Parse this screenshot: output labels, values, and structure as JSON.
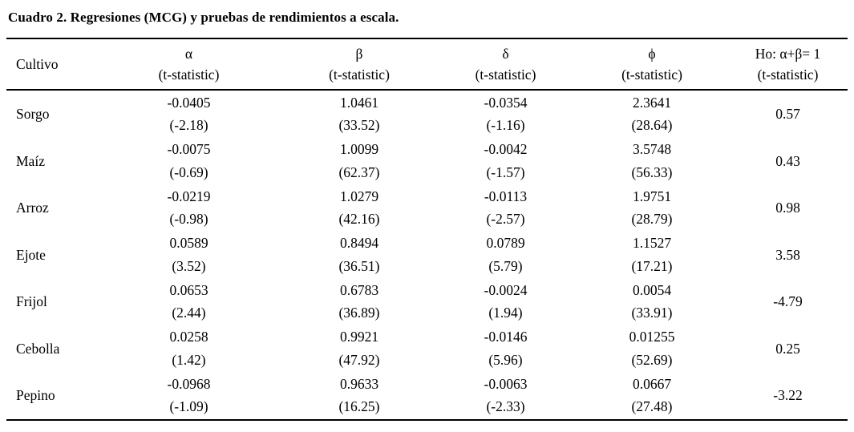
{
  "title": "Cuadro 2. Regresiones (MCG) y pruebas de rendimientos a escala.",
  "table": {
    "columns": [
      {
        "label": "Cultivo",
        "sublabel": ""
      },
      {
        "label": "α",
        "sublabel": "(t-statistic)"
      },
      {
        "label": "β",
        "sublabel": "(t-statistic)"
      },
      {
        "label": "δ",
        "sublabel": "(t-statistic)"
      },
      {
        "label": "ϕ",
        "sublabel": "(t-statistic)"
      },
      {
        "label": "Ho: α+β= 1",
        "sublabel": "(t-statistic)"
      }
    ],
    "rows": [
      {
        "name": "Sorgo",
        "values": [
          "-0.0405",
          "1.0461",
          "-0.0354",
          "2.3641"
        ],
        "tstats": [
          "(-2.18)",
          "(33.52)",
          "(-1.16)",
          "(28.64)"
        ],
        "ho": "0.57"
      },
      {
        "name": "Maíz",
        "values": [
          "-0.0075",
          "1.0099",
          "-0.0042",
          "3.5748"
        ],
        "tstats": [
          "(-0.69)",
          "(62.37)",
          "(-1.57)",
          "(56.33)"
        ],
        "ho": "0.43"
      },
      {
        "name": "Arroz",
        "values": [
          "-0.0219",
          "1.0279",
          "-0.0113",
          "1.9751"
        ],
        "tstats": [
          "(-0.98)",
          "(42.16)",
          "(-2.57)",
          "(28.79)"
        ],
        "ho": "0.98"
      },
      {
        "name": "Ejote",
        "values": [
          "0.0589",
          "0.8494",
          "0.0789",
          "1.1527"
        ],
        "tstats": [
          "(3.52)",
          "(36.51)",
          "(5.79)",
          "(17.21)"
        ],
        "ho": "3.58"
      },
      {
        "name": "Frijol",
        "values": [
          "0.0653",
          "0.6783",
          "-0.0024",
          "0.0054"
        ],
        "tstats": [
          "(2.44)",
          "(36.89)",
          "(1.94)",
          "(33.91)"
        ],
        "ho": "-4.79"
      },
      {
        "name": "Cebolla",
        "values": [
          "0.0258",
          "0.9921",
          "-0.0146",
          "0.01255"
        ],
        "tstats": [
          "(1.42)",
          "(47.92)",
          "(5.96)",
          "(52.69)"
        ],
        "ho": "0.25"
      },
      {
        "name": "Pepino",
        "values": [
          "-0.0968",
          "0.9633",
          "-0.0063",
          "0.0667"
        ],
        "tstats": [
          "(-1.09)",
          "(16.25)",
          "(-2.33)",
          "(27.48)"
        ],
        "ho": "-3.22"
      }
    ]
  }
}
